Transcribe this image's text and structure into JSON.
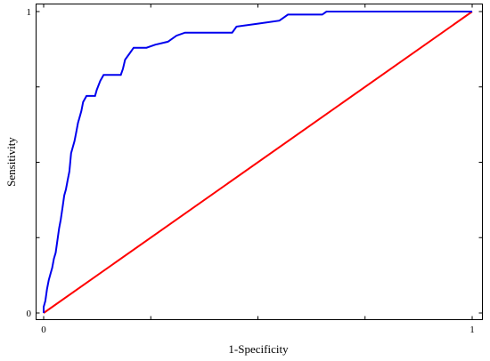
{
  "chart_data": {
    "type": "line",
    "title": "",
    "xlabel": "1-Specificity",
    "ylabel": "Sensitivity",
    "xlim": [
      0,
      1
    ],
    "ylim": [
      0,
      1
    ],
    "x_ticks": [
      {
        "value": 0,
        "label": "0"
      },
      {
        "value": 1,
        "label": "1"
      }
    ],
    "y_ticks": [
      {
        "value": 0,
        "label": "0"
      },
      {
        "value": 1,
        "label": "1"
      }
    ],
    "grid": false,
    "legend": "none",
    "series": [
      {
        "color": "#0000ee",
        "points": [
          [
            0,
            0
          ],
          [
            0,
            0.02
          ],
          [
            0.004,
            0.04
          ],
          [
            0.008,
            0.08
          ],
          [
            0.012,
            0.11
          ],
          [
            0.016,
            0.13
          ],
          [
            0.02,
            0.15
          ],
          [
            0.024,
            0.18
          ],
          [
            0.028,
            0.2
          ],
          [
            0.032,
            0.24
          ],
          [
            0.036,
            0.28
          ],
          [
            0.04,
            0.31
          ],
          [
            0.044,
            0.35
          ],
          [
            0.048,
            0.39
          ],
          [
            0.052,
            0.41
          ],
          [
            0.056,
            0.44
          ],
          [
            0.06,
            0.47
          ],
          [
            0.064,
            0.53
          ],
          [
            0.068,
            0.55
          ],
          [
            0.072,
            0.57
          ],
          [
            0.076,
            0.6
          ],
          [
            0.08,
            0.63
          ],
          [
            0.084,
            0.65
          ],
          [
            0.088,
            0.67
          ],
          [
            0.092,
            0.7
          ],
          [
            0.1,
            0.72
          ],
          [
            0.12,
            0.72
          ],
          [
            0.124,
            0.74
          ],
          [
            0.132,
            0.77
          ],
          [
            0.14,
            0.79
          ],
          [
            0.18,
            0.79
          ],
          [
            0.185,
            0.81
          ],
          [
            0.19,
            0.84
          ],
          [
            0.2,
            0.86
          ],
          [
            0.21,
            0.88
          ],
          [
            0.24,
            0.88
          ],
          [
            0.26,
            0.89
          ],
          [
            0.29,
            0.9
          ],
          [
            0.31,
            0.92
          ],
          [
            0.33,
            0.93
          ],
          [
            0.44,
            0.93
          ],
          [
            0.45,
            0.95
          ],
          [
            0.5,
            0.96
          ],
          [
            0.55,
            0.97
          ],
          [
            0.56,
            0.98
          ],
          [
            0.57,
            0.99
          ],
          [
            0.65,
            0.99
          ],
          [
            0.66,
            1.0
          ],
          [
            1.0,
            1.0
          ]
        ]
      },
      {
        "color": "#ff0000",
        "points": [
          [
            0,
            0
          ],
          [
            1,
            1
          ]
        ]
      }
    ]
  }
}
